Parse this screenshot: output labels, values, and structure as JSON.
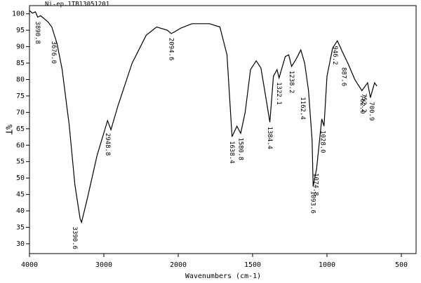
{
  "chart_data": {
    "type": "line",
    "title": "Ni-ep.1TB13051201",
    "y_label": "%T",
    "x_label": "Wavenumbers (cm-1)",
    "color": "#000000",
    "xlim": [
      4000,
      400
    ],
    "xticks": [
      4000,
      3000,
      2000,
      1500,
      1000,
      500
    ],
    "ylim": [
      27,
      102.5
    ],
    "yticks": [
      30,
      35,
      40,
      45,
      50,
      55,
      60,
      65,
      70,
      75,
      80,
      85,
      90,
      95,
      100
    ],
    "x": [
      4000,
      3960,
      3920,
      3890,
      3850,
      3800,
      3750,
      3700,
      3630,
      3560,
      3465,
      3390,
      3320,
      3300,
      3220,
      3090,
      2950,
      2905,
      2810,
      2620,
      2430,
      2290,
      2145,
      2094,
      2050,
      1980,
      1907,
      1790,
      1720,
      1672,
      1638,
      1605,
      1580,
      1550,
      1514,
      1476,
      1444,
      1411,
      1384,
      1360,
      1336,
      1322,
      1280,
      1257,
      1238,
      1210,
      1176,
      1150,
      1124,
      1100,
      1093,
      1070,
      1050,
      1035,
      1020,
      1000,
      962,
      930,
      897,
      860,
      812,
      765,
      727,
      708,
      680,
      664
    ],
    "values": [
      101,
      100.2,
      100.6,
      99,
      99.4,
      98.5,
      97.5,
      96,
      91,
      83,
      66,
      48,
      37.7,
      36.5,
      44,
      57,
      67.5,
      64.7,
      72,
      85,
      93.5,
      96,
      95,
      94,
      94.5,
      95.7,
      97,
      97,
      96,
      87.5,
      62.6,
      65.8,
      63.6,
      70,
      83,
      85.7,
      83.5,
      74.5,
      67,
      81,
      83,
      80.5,
      87,
      87.5,
      84,
      86,
      89,
      85,
      76.6,
      61.5,
      47.4,
      52.8,
      61.5,
      68,
      65.8,
      81,
      89.6,
      91.8,
      88.5,
      85,
      79.9,
      76.6,
      79,
      74.5,
      79,
      78
    ],
    "annotations": [
      {
        "label": "3890.8",
        "x": 3890.8,
        "y": 99
      },
      {
        "label": "3676.0",
        "x": 3676.0,
        "y": 93
      },
      {
        "label": "3390.6",
        "x": 3390.6,
        "y": 36.5
      },
      {
        "label": "2948.8",
        "x": 2948.8,
        "y": 65
      },
      {
        "label": "2094.6",
        "x": 2094.6,
        "y": 94
      },
      {
        "label": "1638.4",
        "x": 1638.4,
        "y": 62.6
      },
      {
        "label": "1580.8",
        "x": 1580.8,
        "y": 63.6
      },
      {
        "label": "1384.4",
        "x": 1384.4,
        "y": 67
      },
      {
        "label": "1322.1",
        "x": 1322.1,
        "y": 80.5
      },
      {
        "label": "1238.2",
        "x": 1238.2,
        "y": 84
      },
      {
        "label": "1162.4",
        "x": 1162.4,
        "y": 76
      },
      {
        "label": "1093.6",
        "x": 1093.6,
        "y": 47.4
      },
      {
        "label": "1074.8",
        "x": 1074.8,
        "y": 52.8
      },
      {
        "label": "1028.0",
        "x": 1028.0,
        "y": 65.8
      },
      {
        "label": "946.2",
        "x": 946.2,
        "y": 91.5
      },
      {
        "label": "887.6",
        "x": 887.6,
        "y": 85
      },
      {
        "label": "762.0",
        "x": 762.0,
        "y": 76.6
      },
      {
        "label": "752.2",
        "x": 752.2,
        "y": 77
      },
      {
        "label": "700.9",
        "x": 700.9,
        "y": 74.5
      }
    ]
  }
}
